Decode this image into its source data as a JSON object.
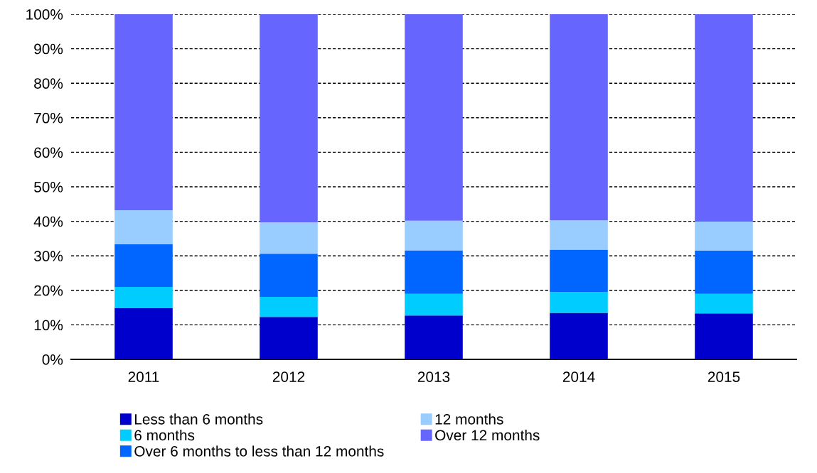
{
  "chart_data": {
    "type": "bar",
    "stacked": true,
    "categories": [
      "2011",
      "2012",
      "2013",
      "2014",
      "2015"
    ],
    "series": [
      {
        "name": "Less than 6 months",
        "color": "#0000cc",
        "values": [
          14.8,
          12.3,
          12.7,
          13.5,
          13.3
        ]
      },
      {
        "name": "6 months",
        "color": "#00ccff",
        "values": [
          6.2,
          5.8,
          6.3,
          6.0,
          5.7
        ]
      },
      {
        "name": "Over 6 months to less than 12 months",
        "color": "#0066ff",
        "values": [
          12.4,
          12.5,
          12.6,
          12.3,
          12.5
        ]
      },
      {
        "name": "12 months",
        "color": "#99ccff",
        "values": [
          9.8,
          9.1,
          8.6,
          8.5,
          8.4
        ]
      },
      {
        "name": "Over 12 months",
        "color": "#6666ff",
        "values": [
          56.8,
          60.3,
          59.8,
          59.7,
          60.1
        ]
      }
    ],
    "ylim": [
      0,
      100
    ],
    "yticks": [
      {
        "value": 0,
        "label": "0%"
      },
      {
        "value": 10,
        "label": "10%"
      },
      {
        "value": 20,
        "label": "20%"
      },
      {
        "value": 30,
        "label": "30%"
      },
      {
        "value": 40,
        "label": "40%"
      },
      {
        "value": 50,
        "label": "50%"
      },
      {
        "value": 60,
        "label": "60%"
      },
      {
        "value": 70,
        "label": "70%"
      },
      {
        "value": 80,
        "label": "80%"
      },
      {
        "value": 90,
        "label": "90%"
      },
      {
        "value": 100,
        "label": "100%"
      }
    ],
    "grid": "y",
    "legend": "bottom"
  }
}
